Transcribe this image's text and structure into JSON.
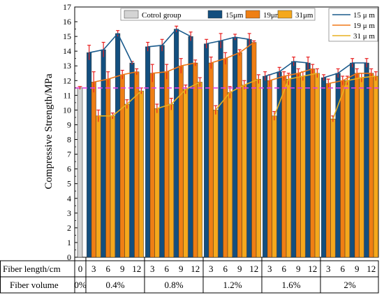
{
  "chart_data": {
    "type": "bar",
    "ylabel": "Compressive Strength/MPa",
    "ylim": [
      0,
      17
    ],
    "yticks": [
      0,
      1,
      2,
      3,
      4,
      5,
      6,
      7,
      8,
      9,
      10,
      11,
      12,
      13,
      14,
      15,
      16,
      17
    ],
    "reference_line": {
      "value": 11.5,
      "style": "dashed",
      "color": "#e040e0"
    },
    "control": {
      "name": "Cotrol group",
      "value": 11.5,
      "error": 0.1,
      "length_label": "0",
      "volume_label": "0%"
    },
    "lengths": [
      "3",
      "6",
      "9",
      "12"
    ],
    "volumes": [
      "0.4%",
      "0.8%",
      "1.2%",
      "1.6%",
      "2%"
    ],
    "table_row_labels": [
      "Fiber length/cm",
      "Fiber volume"
    ],
    "series": [
      {
        "name": "15μm",
        "line_label": "15 μ m",
        "color": "#134f7f",
        "line_color": "#1a5a8c",
        "values": [
          [
            13.9,
            14.1,
            15.2,
            13.2
          ],
          [
            14.3,
            14.4,
            15.5,
            15.0
          ],
          [
            14.5,
            14.7,
            14.95,
            14.8
          ],
          [
            12.3,
            12.6,
            13.3,
            13.2
          ],
          [
            12.2,
            12.5,
            13.2,
            13.2
          ]
        ],
        "errors": [
          [
            0.5,
            0.5,
            0.2,
            0.1
          ],
          [
            0.3,
            0.4,
            0.2,
            0.3
          ],
          [
            0.3,
            0.5,
            0.2,
            0.4
          ],
          [
            0.3,
            0.3,
            0.3,
            0.4
          ],
          [
            0.2,
            0.3,
            0.3,
            0.3
          ]
        ]
      },
      {
        "name": "19μm",
        "line_label": "19 μ m",
        "color": "#ef7f14",
        "line_color": "#f07818",
        "values": [
          [
            11.9,
            12.1,
            12.4,
            12.6
          ],
          [
            12.5,
            12.6,
            13.0,
            13.2
          ],
          [
            13.2,
            13.5,
            13.9,
            14.6
          ],
          [
            12.0,
            12.3,
            12.5,
            12.8
          ],
          [
            11.8,
            12.0,
            12.5,
            12.5
          ]
        ],
        "errors": [
          [
            0.7,
            0.5,
            0.3,
            0.2
          ],
          [
            0.6,
            0.5,
            0.5,
            0.2
          ],
          [
            0.4,
            0.4,
            0.2,
            0.1
          ],
          [
            0.4,
            0.3,
            0.3,
            0.3
          ],
          [
            0.3,
            0.3,
            0.3,
            0.3
          ]
        ]
      },
      {
        "name": "31μm",
        "line_label": "31 μ m",
        "color": "#f5a81c",
        "line_color": "#e8b020",
        "values": [
          [
            9.6,
            9.6,
            10.4,
            11.3
          ],
          [
            10.1,
            10.4,
            11.4,
            11.9
          ],
          [
            10.0,
            11.2,
            11.7,
            12.1
          ],
          [
            9.6,
            12.1,
            12.3,
            12.5
          ],
          [
            9.4,
            12.0,
            12.2,
            12.3
          ]
        ],
        "errors": [
          [
            0.4,
            0.2,
            0.3,
            0.2
          ],
          [
            0.3,
            0.4,
            0.3,
            0.3
          ],
          [
            0.3,
            0.4,
            0.3,
            0.3
          ],
          [
            0.3,
            0.4,
            0.3,
            0.3
          ],
          [
            0.2,
            0.3,
            0.3,
            0.3
          ]
        ]
      }
    ],
    "legend_bars": [
      "Cotrol group",
      "15μm",
      "19μm",
      "31μm"
    ],
    "legend_lines": [
      "15 μ m",
      "19 μ m",
      "31 μ m"
    ],
    "control_color": "#d4d4d4",
    "error_bar_color": "#e82020"
  }
}
